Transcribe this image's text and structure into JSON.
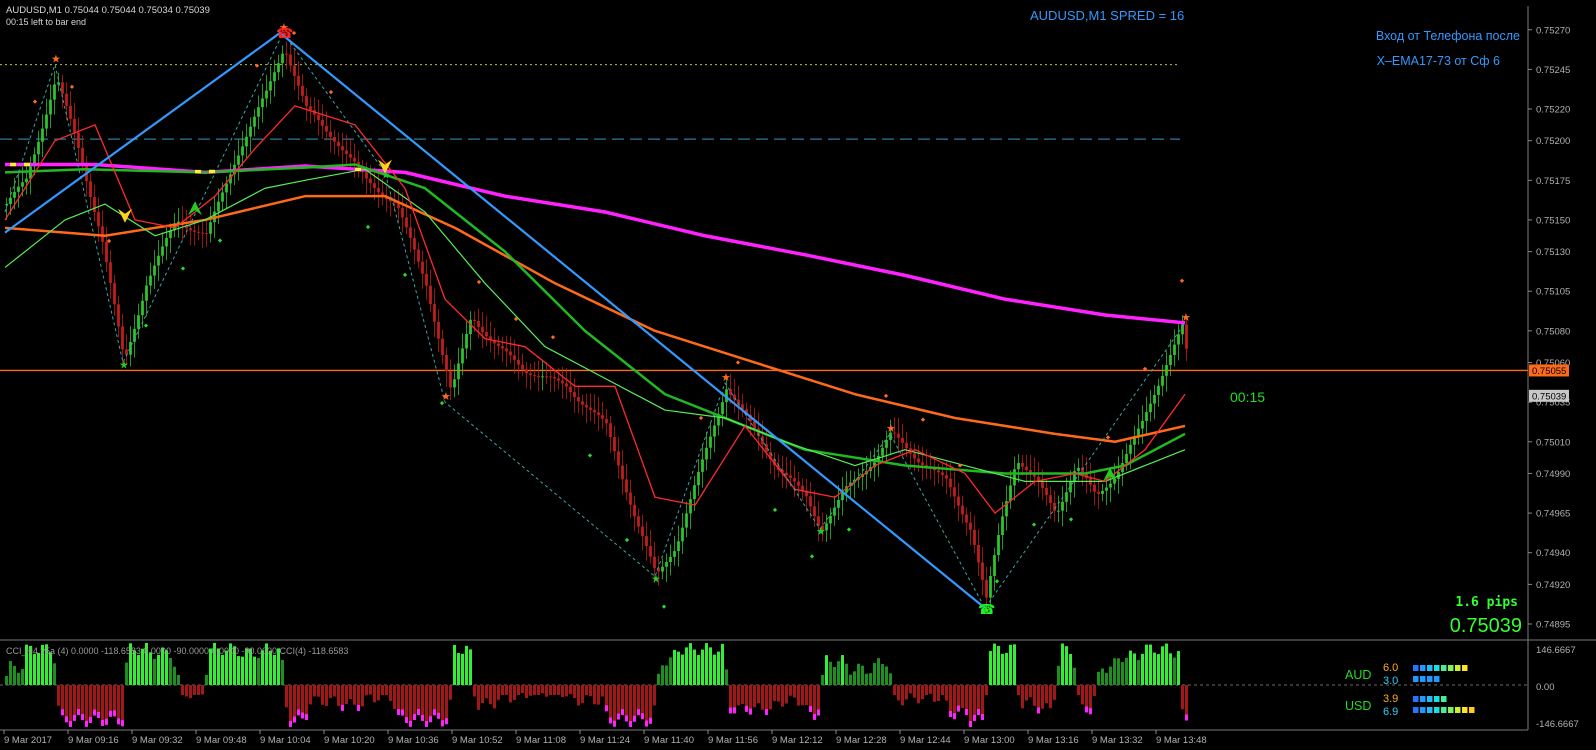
{
  "header": {
    "symbol_line": "AUDUSD,M1  0.75044 0.75044 0.75034 0.75039",
    "timer_line": "00:15 left to bar end",
    "spread_label": "AUDUSD,M1    SPRED = 16"
  },
  "notes": {
    "line1": "Вход от Телефона после",
    "line2": "X–EMA17-73 от Сф 6"
  },
  "overlay": {
    "countdown": "00:15",
    "pips": "1.6 pips",
    "price": "0.75039"
  },
  "indicator": {
    "label": "CCI_H4  v5a (4) 0.0000 -118.6583 0.0000 -90.0000 0.0000 -90.0000  CCI(4) -118.6583",
    "levels": [
      "146.6667",
      "0.00",
      "-146.6667"
    ]
  },
  "strength": {
    "aud": {
      "label": "AUD",
      "v1": "6.0",
      "v2": "3.0",
      "bars1": 6.0,
      "bars2": 3.0
    },
    "usd": {
      "label": "USD",
      "v1": "3.9",
      "v2": "6.9",
      "bars1": 3.9,
      "bars2": 6.9
    }
  },
  "colors": {
    "bull": "#2ecc2e",
    "bear": "#c81e1e",
    "magenta": "#ff22ff",
    "orange": "#ff6a1a",
    "green_ma": "#22b822",
    "light_green": "#55ee55",
    "red_ma": "#ff2a2a",
    "blue_line": "#3399ff",
    "axis": "#b0b0b0"
  },
  "chart_data": {
    "type": "line",
    "ylim": [
      0.74895,
      0.75285
    ],
    "y_ticks": [
      "0.75270",
      "0.75245",
      "0.75220",
      "0.75200",
      "0.75175",
      "0.75150",
      "0.75130",
      "0.75105",
      "0.75080",
      "0.75060",
      "0.75035",
      "0.75010",
      "0.74990",
      "0.74965",
      "0.74940",
      "0.74920",
      "0.74895"
    ],
    "x_ticks": [
      "9 Mar 2017",
      "9 Mar 09:16",
      "9 Mar 09:32",
      "9 Mar 09:48",
      "9 Mar 10:04",
      "9 Mar 10:20",
      "9 Mar 10:36",
      "9 Mar 10:52",
      "9 Mar 11:08",
      "9 Mar 11:24",
      "9 Mar 11:40",
      "9 Mar 11:56",
      "9 Mar 12:12",
      "9 Mar 12:28",
      "9 Mar 12:44",
      "9 Mar 13:00",
      "9 Mar 13:16",
      "9 Mar 13:32",
      "9 Mar 13:48"
    ],
    "price_tags": [
      "0.75055",
      "0.75039"
    ],
    "horizontal_levels": [
      0.75248,
      0.75201,
      0.75055
    ],
    "trendline": [
      [
        0,
        0.75142
      ],
      [
        275,
        0.75268
      ],
      [
        980,
        0.74905
      ]
    ],
    "zigzag": [
      [
        0,
        0.75155
      ],
      [
        50,
        0.75248
      ],
      [
        118,
        0.7506
      ],
      [
        278,
        0.75268
      ],
      [
        380,
        0.7518
      ],
      [
        440,
        0.75035
      ],
      [
        650,
        0.74925
      ],
      [
        720,
        0.75047
      ],
      [
        815,
        0.74955
      ],
      [
        885,
        0.75015
      ],
      [
        980,
        0.74905
      ],
      [
        1180,
        0.75085
      ]
    ],
    "series": [
      {
        "name": "ma_magenta",
        "values": [
          [
            0,
            0.75185
          ],
          [
            90,
            0.75185
          ],
          [
            200,
            0.7518
          ],
          [
            300,
            0.75184
          ],
          [
            400,
            0.7518
          ],
          [
            500,
            0.75165
          ],
          [
            600,
            0.75155
          ],
          [
            700,
            0.7514
          ],
          [
            800,
            0.75128
          ],
          [
            900,
            0.75115
          ],
          [
            1000,
            0.751
          ],
          [
            1100,
            0.7509
          ],
          [
            1180,
            0.75085
          ]
        ]
      },
      {
        "name": "ma_orange",
        "values": [
          [
            0,
            0.75145
          ],
          [
            100,
            0.7514
          ],
          [
            200,
            0.7515
          ],
          [
            300,
            0.75165
          ],
          [
            380,
            0.75165
          ],
          [
            450,
            0.75145
          ],
          [
            550,
            0.7511
          ],
          [
            650,
            0.7508
          ],
          [
            750,
            0.7506
          ],
          [
            850,
            0.7504
          ],
          [
            950,
            0.75025
          ],
          [
            1050,
            0.75015
          ],
          [
            1110,
            0.7501
          ],
          [
            1180,
            0.7502
          ]
        ]
      },
      {
        "name": "ma_green",
        "values": [
          [
            0,
            0.7518
          ],
          [
            80,
            0.75182
          ],
          [
            200,
            0.7518
          ],
          [
            300,
            0.75183
          ],
          [
            350,
            0.75185
          ],
          [
            420,
            0.7517
          ],
          [
            500,
            0.7513
          ],
          [
            580,
            0.7508
          ],
          [
            660,
            0.7504
          ],
          [
            740,
            0.7502
          ],
          [
            800,
            0.75005
          ],
          [
            900,
            0.74995
          ],
          [
            1000,
            0.7499
          ],
          [
            1080,
            0.7499
          ],
          [
            1120,
            0.74995
          ],
          [
            1180,
            0.75015
          ]
        ]
      },
      {
        "name": "ma_lightgreen",
        "values": [
          [
            0,
            0.7512
          ],
          [
            60,
            0.7515
          ],
          [
            100,
            0.7516
          ],
          [
            150,
            0.7514
          ],
          [
            200,
            0.7515
          ],
          [
            260,
            0.7517
          ],
          [
            300,
            0.75175
          ],
          [
            360,
            0.75182
          ],
          [
            420,
            0.75155
          ],
          [
            480,
            0.7511
          ],
          [
            540,
            0.7507
          ],
          [
            600,
            0.7505
          ],
          [
            660,
            0.7503
          ],
          [
            720,
            0.75025
          ],
          [
            780,
            0.7501
          ],
          [
            850,
            0.74995
          ],
          [
            900,
            0.75005
          ],
          [
            960,
            0.74995
          ],
          [
            1020,
            0.74985
          ],
          [
            1100,
            0.74985
          ],
          [
            1140,
            0.74995
          ],
          [
            1180,
            0.75005
          ]
        ]
      },
      {
        "name": "ma_red",
        "values": [
          [
            0,
            0.7515
          ],
          [
            50,
            0.752
          ],
          [
            90,
            0.7521
          ],
          [
            130,
            0.7515
          ],
          [
            170,
            0.75145
          ],
          [
            210,
            0.75165
          ],
          [
            250,
            0.75195
          ],
          [
            290,
            0.75222
          ],
          [
            350,
            0.7521
          ],
          [
            400,
            0.7517
          ],
          [
            440,
            0.751
          ],
          [
            480,
            0.75075
          ],
          [
            520,
            0.7507
          ],
          [
            570,
            0.75045
          ],
          [
            610,
            0.75045
          ],
          [
            650,
            0.74975
          ],
          [
            690,
            0.7497
          ],
          [
            740,
            0.7502
          ],
          [
            790,
            0.7498
          ],
          [
            830,
            0.74975
          ],
          [
            870,
            0.74995
          ],
          [
            910,
            0.75005
          ],
          [
            960,
            0.7499
          ],
          [
            990,
            0.74965
          ],
          [
            1030,
            0.74985
          ],
          [
            1070,
            0.7499
          ],
          [
            1100,
            0.74985
          ],
          [
            1140,
            0.75005
          ],
          [
            1180,
            0.7504
          ]
        ]
      }
    ],
    "close_path": [
      [
        0,
        0.7516
      ],
      [
        20,
        0.75175
      ],
      [
        50,
        0.7524
      ],
      [
        70,
        0.752
      ],
      [
        95,
        0.7514
      ],
      [
        118,
        0.7506
      ],
      [
        140,
        0.7511
      ],
      [
        170,
        0.7515
      ],
      [
        200,
        0.7514
      ],
      [
        230,
        0.7519
      ],
      [
        260,
        0.7523
      ],
      [
        278,
        0.7526
      ],
      [
        300,
        0.7522
      ],
      [
        330,
        0.752
      ],
      [
        360,
        0.75175
      ],
      [
        390,
        0.7516
      ],
      [
        420,
        0.7511
      ],
      [
        445,
        0.7504
      ],
      [
        465,
        0.7509
      ],
      [
        490,
        0.7507
      ],
      [
        520,
        0.75055
      ],
      [
        560,
        0.75045
      ],
      [
        600,
        0.7502
      ],
      [
        630,
        0.7496
      ],
      [
        650,
        0.74925
      ],
      [
        670,
        0.74945
      ],
      [
        700,
        0.75005
      ],
      [
        720,
        0.75045
      ],
      [
        745,
        0.7502
      ],
      [
        770,
        0.74995
      ],
      [
        800,
        0.74975
      ],
      [
        815,
        0.74955
      ],
      [
        840,
        0.7498
      ],
      [
        870,
        0.75
      ],
      [
        885,
        0.75015
      ],
      [
        910,
        0.75
      ],
      [
        940,
        0.74985
      ],
      [
        965,
        0.74955
      ],
      [
        980,
        0.7491
      ],
      [
        995,
        0.7496
      ],
      [
        1010,
        0.75
      ],
      [
        1030,
        0.74985
      ],
      [
        1050,
        0.74965
      ],
      [
        1070,
        0.74995
      ],
      [
        1090,
        0.74975
      ],
      [
        1110,
        0.7499
      ],
      [
        1135,
        0.7502
      ],
      [
        1160,
        0.7506
      ],
      [
        1178,
        0.75085
      ],
      [
        1183,
        0.75039
      ]
    ]
  }
}
